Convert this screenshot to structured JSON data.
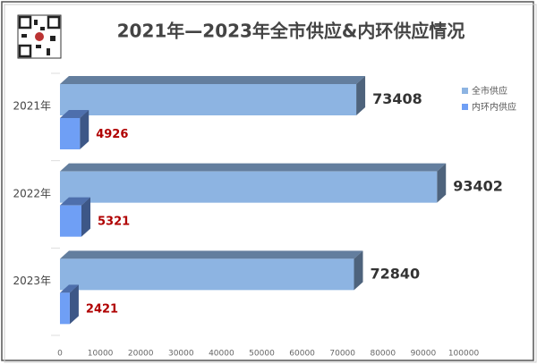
{
  "chart_data": {
    "type": "bar3d",
    "orientation": "horizontal",
    "title": "2021年—2023年全市供应&内环供应情况",
    "categories": [
      "2021年",
      "2022年",
      "2023年"
    ],
    "series": [
      {
        "name": "全市供应",
        "color": "#8db4e2",
        "values": [
          73408,
          93402,
          72840
        ]
      },
      {
        "name": "内环内供应",
        "color": "#6f9ff5",
        "values": [
          4926,
          5321,
          2421
        ]
      }
    ],
    "xlim": [
      0,
      100000
    ],
    "xticks": [
      0,
      10000,
      20000,
      30000,
      40000,
      50000,
      60000,
      70000,
      80000,
      90000,
      100000
    ],
    "legend": "right"
  }
}
